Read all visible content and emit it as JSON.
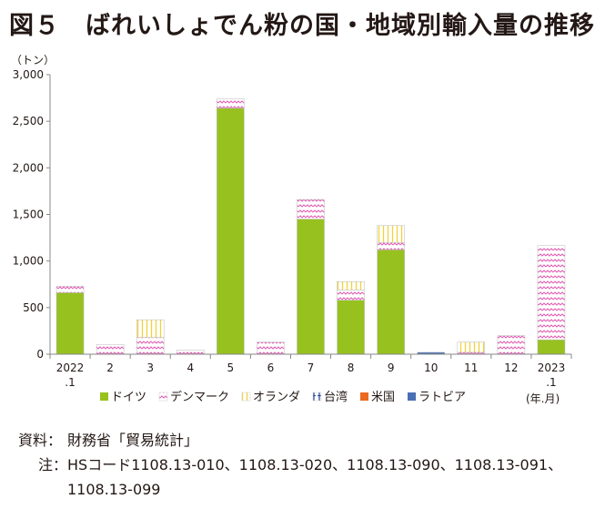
{
  "title": "図５　ばれいしょでん粉の国・地域別輸入量の推移",
  "chart_data": {
    "type": "bar",
    "stacked": true,
    "unit": "（トン）",
    "x_unit": "(年.月)",
    "categories": [
      "2022\n.1",
      "2",
      "3",
      "4",
      "5",
      "6",
      "7",
      "8",
      "9",
      "10",
      "11",
      "12",
      "2023\n.1"
    ],
    "ylim": [
      0,
      3000
    ],
    "yticks": [
      0,
      500,
      1000,
      1500,
      2000,
      2500,
      3000
    ],
    "ytick_labels": [
      "0",
      "500",
      "1,000",
      "1,500",
      "2,000",
      "2,500",
      "3,000"
    ],
    "grid": false,
    "legend_position": "bottom",
    "series": [
      {
        "name": "ドイツ",
        "color": "#97c11f",
        "pattern": "solid",
        "values": [
          660,
          0,
          0,
          0,
          2640,
          0,
          1450,
          580,
          1120,
          0,
          0,
          0,
          155
        ]
      },
      {
        "name": "デンマーク",
        "color": "#e15fb4",
        "pattern": "wave",
        "values": [
          70,
          105,
          180,
          45,
          100,
          130,
          210,
          110,
          80,
          0,
          20,
          200,
          1010
        ]
      },
      {
        "name": "オランダ",
        "color": "#f2d23a",
        "pattern": "vlines",
        "values": [
          0,
          0,
          190,
          0,
          0,
          0,
          0,
          90,
          180,
          0,
          110,
          0,
          0
        ]
      },
      {
        "name": "台湾",
        "color": "#1f3f8f",
        "pattern": "ibar",
        "values": [
          0,
          0,
          0,
          0,
          0,
          0,
          0,
          0,
          0,
          0,
          0,
          0,
          0
        ]
      },
      {
        "name": "米国",
        "color": "#ec6a1f",
        "pattern": "solid",
        "values": [
          0,
          0,
          0,
          0,
          0,
          0,
          0,
          0,
          0,
          0,
          0,
          0,
          0
        ]
      },
      {
        "name": "ラトビア",
        "color": "#4a6fb3",
        "pattern": "solid",
        "values": [
          0,
          0,
          0,
          0,
          0,
          0,
          0,
          0,
          0,
          20,
          0,
          0,
          0
        ]
      }
    ]
  },
  "notes": {
    "source_label": "資料：",
    "source_text": "財務省「貿易統計」",
    "note_label": "注：",
    "note_text": "HSコード1108.13-010、1108.13-020、1108.13-090、1108.13-091、",
    "note_text_2": "1108.13-099"
  }
}
